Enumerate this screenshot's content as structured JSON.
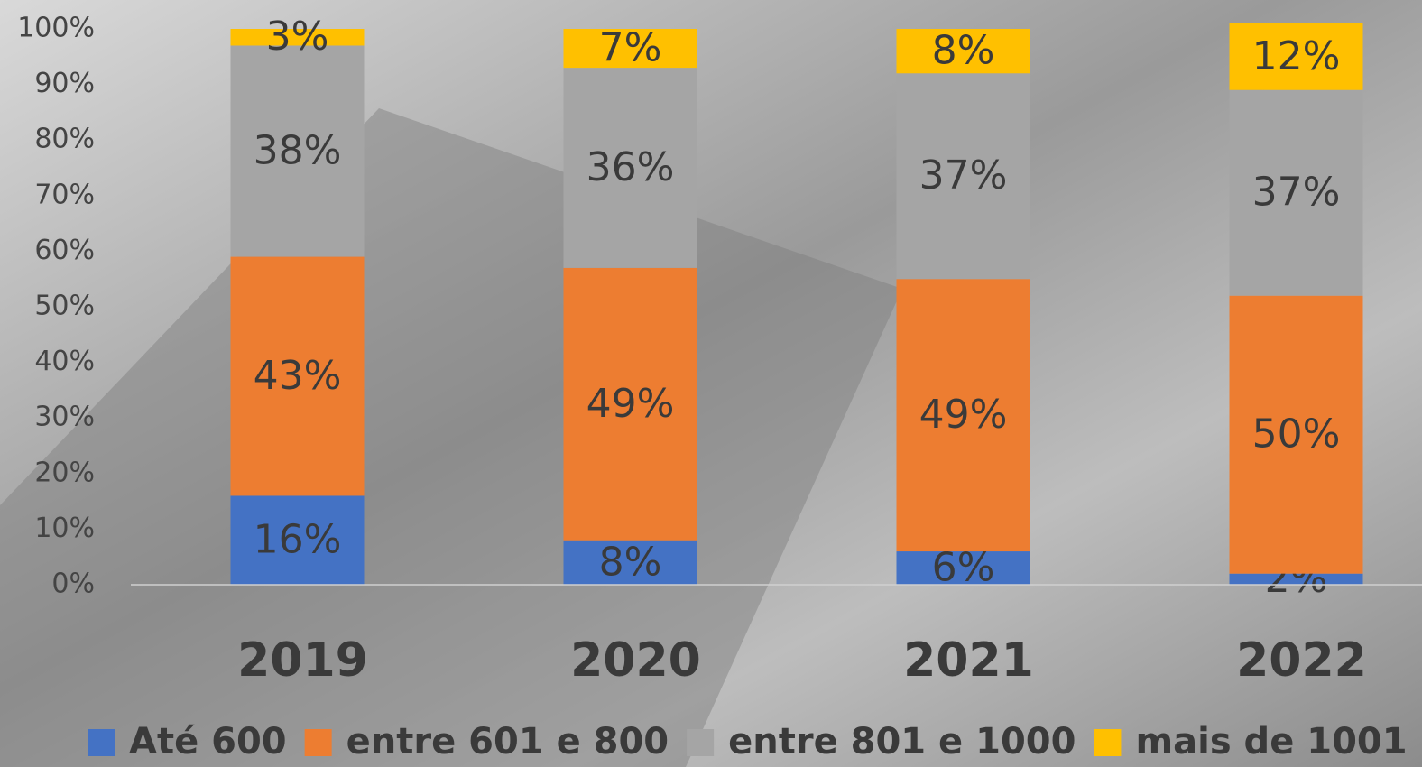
{
  "chart_data": {
    "type": "stacked-bar",
    "categories": [
      "2019",
      "2020",
      "2021",
      "2022"
    ],
    "series": [
      {
        "name": "Até 600",
        "color": "#4472c4",
        "values": [
          16,
          8,
          6,
          2
        ],
        "value_labels": [
          "16%",
          "8%",
          "6%",
          "2%"
        ]
      },
      {
        "name": "entre 601 e 800",
        "color": "#ed7d31",
        "values": [
          43,
          49,
          49,
          50
        ],
        "value_labels": [
          "43%",
          "49%",
          "49%",
          "50%"
        ]
      },
      {
        "name": "entre 801 e 1000",
        "color": "#a5a5a5",
        "values": [
          38,
          36,
          37,
          37
        ],
        "value_labels": [
          "38%",
          "36%",
          "37%",
          "37%"
        ]
      },
      {
        "name": "mais de 1001",
        "color": "#ffc000",
        "values": [
          3,
          7,
          8,
          12
        ],
        "value_labels": [
          "3%",
          "7%",
          "8%",
          "12%"
        ]
      }
    ],
    "ylim": [
      0,
      100
    ],
    "yticks": [
      {
        "value": 0,
        "label": "0%"
      },
      {
        "value": 10,
        "label": "10%"
      },
      {
        "value": 20,
        "label": "20%"
      },
      {
        "value": 30,
        "label": "30%"
      },
      {
        "value": 40,
        "label": "40%"
      },
      {
        "value": 50,
        "label": "50%"
      },
      {
        "value": 60,
        "label": "60%"
      },
      {
        "value": 70,
        "label": "70%"
      },
      {
        "value": 80,
        "label": "80%"
      },
      {
        "value": 90,
        "label": "90%"
      },
      {
        "value": 100,
        "label": "100%"
      }
    ],
    "legend": "bottom"
  }
}
